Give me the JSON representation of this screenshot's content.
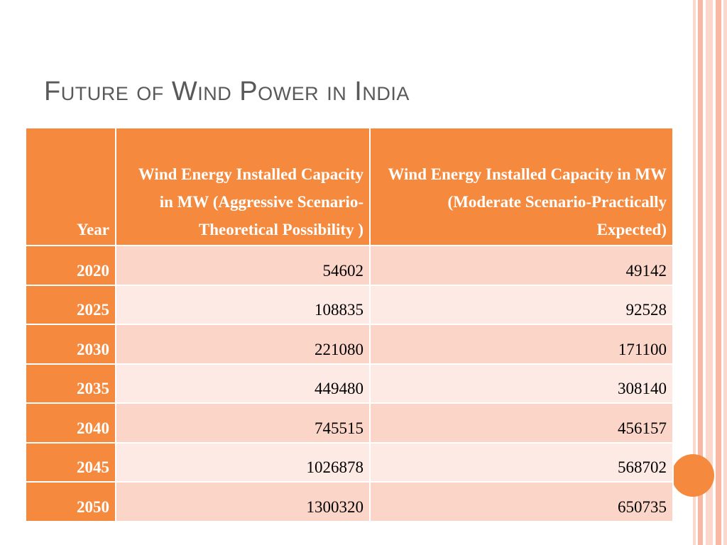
{
  "slide": {
    "title": {
      "words": [
        {
          "cap": "F",
          "rest": "UTURE"
        },
        {
          "cap": "",
          "rest": "OF"
        },
        {
          "cap": "W",
          "rest": "IND"
        },
        {
          "cap": "P",
          "rest": "OWER"
        },
        {
          "cap": "",
          "rest": "IN"
        },
        {
          "cap": "I",
          "rest": "NDIA"
        }
      ]
    }
  },
  "colors": {
    "header_bg": "#f58a3f",
    "year_bg": "#f58a3f",
    "row_odd_bg": "#fbd5c8",
    "row_even_bg": "#fdeae4",
    "title_color": "#595959",
    "stripe_light": "#fcd8cc",
    "stripe_mid": "#f9b8a3",
    "accent_circle": "#f58a3f"
  },
  "table": {
    "headers": [
      "Year",
      "Wind Energy Installed Capacity in MW (Aggressive Scenario-Theoretical Possibility )",
      "Wind Energy Installed Capacity in MW (Moderate Scenario-Practically Expected)"
    ],
    "rows": [
      [
        "2020",
        "54602",
        "49142"
      ],
      [
        "2025",
        "108835",
        "92528"
      ],
      [
        "2030",
        "221080",
        "171100"
      ],
      [
        "2035",
        "449480",
        "308140"
      ],
      [
        "2040",
        "745515",
        "456157"
      ],
      [
        "2045",
        "1026878",
        "568702"
      ],
      [
        "2050",
        "1300320",
        "650735"
      ]
    ]
  }
}
